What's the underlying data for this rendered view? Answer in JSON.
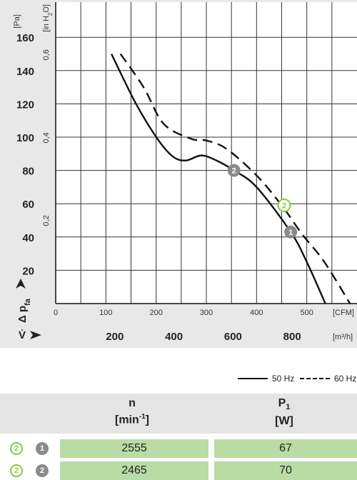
{
  "chart_data": {
    "type": "line",
    "y_axis_label": "Δ p",
    "y_axis_label_sub": "fa",
    "y_unit_pa": "[Pa]",
    "y_unit_inh2o": "[in H",
    "y_unit_inh2o_sub": "2",
    "y_unit_inh2o_end": "O]",
    "x_axis_label": "V̇",
    "x_unit_cfm": "[CFM]",
    "x_unit_m3h": "[m³/h]",
    "pa_ticks": [
      "20",
      "40",
      "60",
      "80",
      "100",
      "120",
      "140",
      "160"
    ],
    "inh2o_ticks": [
      "0,2",
      "0,4",
      "0,6"
    ],
    "cfm_ticks": [
      "0",
      "100",
      "200",
      "300",
      "400",
      "500"
    ],
    "m3h_ticks": [
      "200",
      "400",
      "600",
      "800"
    ],
    "xlim_cfm": [
      0,
      600
    ],
    "ylim_pa": [
      0,
      170
    ],
    "grid": true,
    "series": [
      {
        "name": "50 Hz",
        "style": "solid",
        "x": [
          111,
          160,
          205,
          235,
          260,
          290,
          320,
          355,
          400,
          468,
          500,
          537
        ],
        "y": [
          150,
          120,
          98,
          88,
          86,
          89,
          86,
          80,
          70,
          43,
          25,
          0
        ]
      },
      {
        "name": "60 Hz",
        "style": "dashed",
        "x": [
          129,
          175,
          215,
          270,
          300,
          340,
          400,
          450,
          490,
          535,
          586
        ],
        "y": [
          150,
          130,
          108,
          99,
          98,
          93,
          77,
          59,
          42,
          25,
          0
        ]
      }
    ],
    "operating_points": [
      {
        "id": "1",
        "x": 468,
        "y": 43,
        "style": "grey"
      },
      {
        "id": "2",
        "x": 355,
        "y": 80,
        "style": "grey"
      },
      {
        "id": "2",
        "x": 455,
        "y": 59,
        "style": "green"
      }
    ]
  },
  "legend": {
    "solid_label": "50 Hz",
    "dashed_label": "60 Hz"
  },
  "table": {
    "col1_title": "n",
    "col1_unit_open": "[min",
    "col1_unit_sup": "-1",
    "col1_unit_close": "]",
    "col2_title": "P",
    "col2_title_sub": "1",
    "col2_unit": "[W]",
    "rows": [
      {
        "green_marker": "2",
        "grey_marker": "1",
        "n": "2555",
        "p1": "67"
      },
      {
        "green_marker": "2",
        "grey_marker": "2",
        "n": "2465",
        "p1": "70"
      }
    ]
  },
  "colors": {
    "panel": "#e8e8e8",
    "plot_bg": "#ffffff",
    "grid": "#333333",
    "green": "#8cc63f",
    "grey_marker": "#8a8a8a",
    "cell_green": "#b8dca4"
  }
}
